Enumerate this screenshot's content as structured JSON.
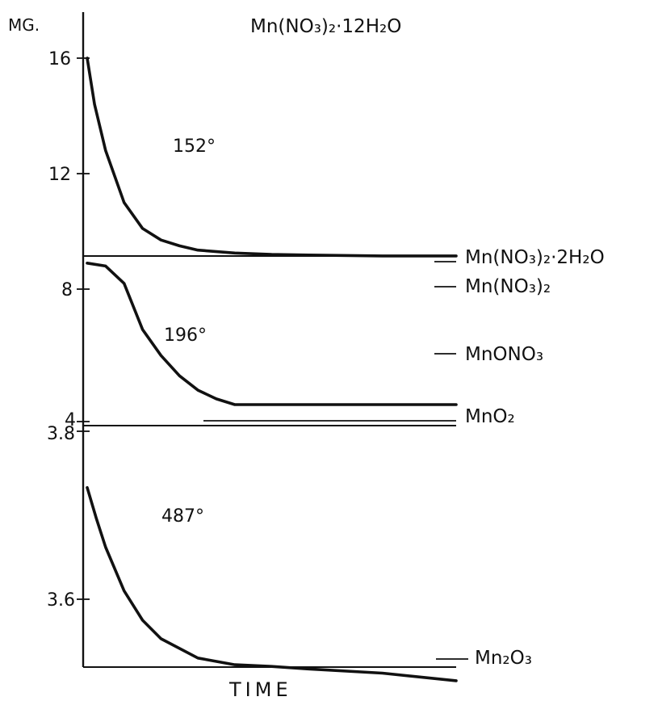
{
  "chart_data": {
    "type": "line",
    "title": "Mn(NO₃)₂·12H₂O",
    "xlabel": "TIME",
    "ylabel": "MG.",
    "legend": "none",
    "grid": false,
    "y_axis_segments": [
      {
        "range": [
          8.0,
          16.0
        ],
        "ticks": [
          {
            "value": 16,
            "label": "16"
          },
          {
            "value": 12,
            "label": "12"
          },
          {
            "value": 8,
            "label": "8"
          },
          {
            "value": 4,
            "label": "4"
          }
        ]
      },
      {
        "range": [
          3.8,
          3.5
        ],
        "ticks": [
          {
            "value": 3.8,
            "label": "3.8"
          },
          {
            "value": 3.6,
            "label": "3.6"
          }
        ]
      }
    ],
    "series": [
      {
        "name": "152°",
        "x": [
          0,
          0.2,
          0.5,
          1,
          1.5,
          2,
          2.5,
          3,
          4,
          5,
          6,
          8,
          10
        ],
        "y": [
          16.0,
          14.4,
          12.8,
          11.0,
          10.1,
          9.7,
          9.5,
          9.35,
          9.25,
          9.2,
          9.18,
          9.15,
          9.15
        ]
      },
      {
        "name": "196°",
        "x": [
          0,
          0.5,
          1,
          1.5,
          2,
          2.5,
          3,
          3.5,
          4,
          5,
          6,
          8,
          10
        ],
        "y": [
          8.9,
          8.8,
          8.2,
          6.6,
          5.7,
          5.0,
          4.5,
          4.2,
          4.0,
          4.0,
          4.0,
          4.0,
          4.0
        ]
      },
      {
        "name": "487°",
        "x": [
          0,
          0.25,
          0.5,
          1,
          1.5,
          2,
          3,
          4,
          5,
          6,
          8,
          10
        ],
        "y": [
          3.733,
          3.696,
          3.662,
          3.61,
          3.575,
          3.553,
          3.53,
          3.522,
          3.52,
          3.517,
          3.512,
          3.503
        ]
      }
    ],
    "reference_levels": [
      {
        "label": "Mn(NO₃)₂·2H₂O",
        "value": 9.05
      },
      {
        "label": "Mn(NO₃)₂",
        "value": 8.0
      },
      {
        "label": "MnONO₃",
        "value": 6.0
      },
      {
        "label": "MnO₂",
        "value": 4.1
      },
      {
        "label": "Mn₂O₃",
        "value": 3.505
      }
    ],
    "temperatures": [
      "152°",
      "196°",
      "487°"
    ]
  }
}
